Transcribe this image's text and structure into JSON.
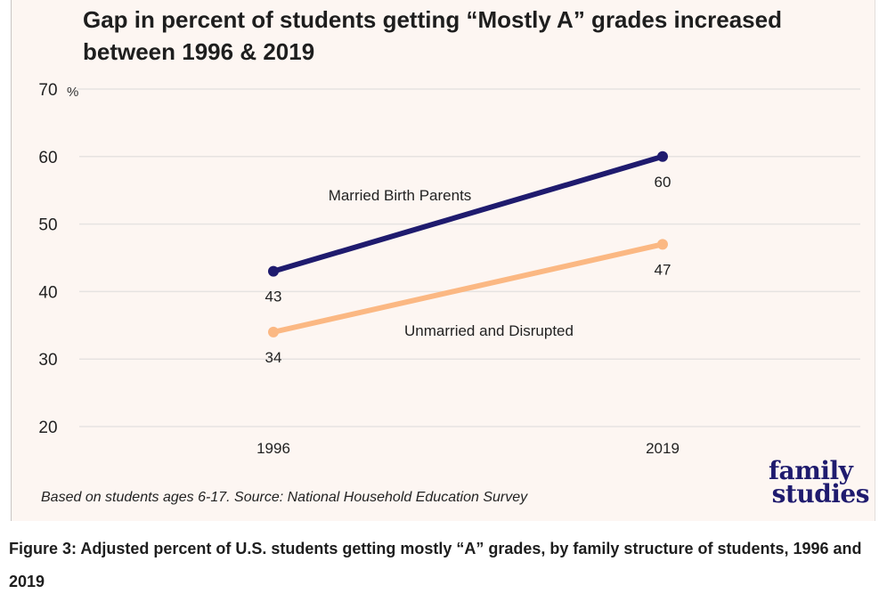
{
  "title": "Gap in percent of students getting “Mostly A” grades increased between 1996 & 2019",
  "source_note": "Based on students ages 6-17. Source: National Household Education Survey",
  "logo": {
    "line1": "family",
    "line2": "studies"
  },
  "caption": "Figure 3: Adjusted percent of U.S. students getting mostly “A” grades, by family structure of students, 1996 and 2019",
  "colors": {
    "panel_bg": "#fdf6f2",
    "married": "#1f1b6e",
    "unmarried": "#fbb883",
    "grid": "#e6e3e1"
  },
  "chart_data": {
    "type": "line",
    "title": "Gap in percent of students getting “Mostly A” grades increased between 1996 & 2019",
    "x": [
      "1996",
      "2019"
    ],
    "xlabel": "",
    "ylabel": "%",
    "y_unit_label": "%",
    "ylim": [
      20,
      70
    ],
    "yticks": [
      20,
      30,
      40,
      50,
      60,
      70
    ],
    "grid": true,
    "legend": "inline labels",
    "series": [
      {
        "name": "Married Birth Parents",
        "values": [
          43,
          60
        ],
        "color": "#1f1b6e",
        "data_labels": [
          "43",
          "60"
        ]
      },
      {
        "name": "Unmarried and Disrupted",
        "values": [
          34,
          47
        ],
        "color": "#fbb883",
        "data_labels": [
          "34",
          "47"
        ]
      }
    ]
  }
}
